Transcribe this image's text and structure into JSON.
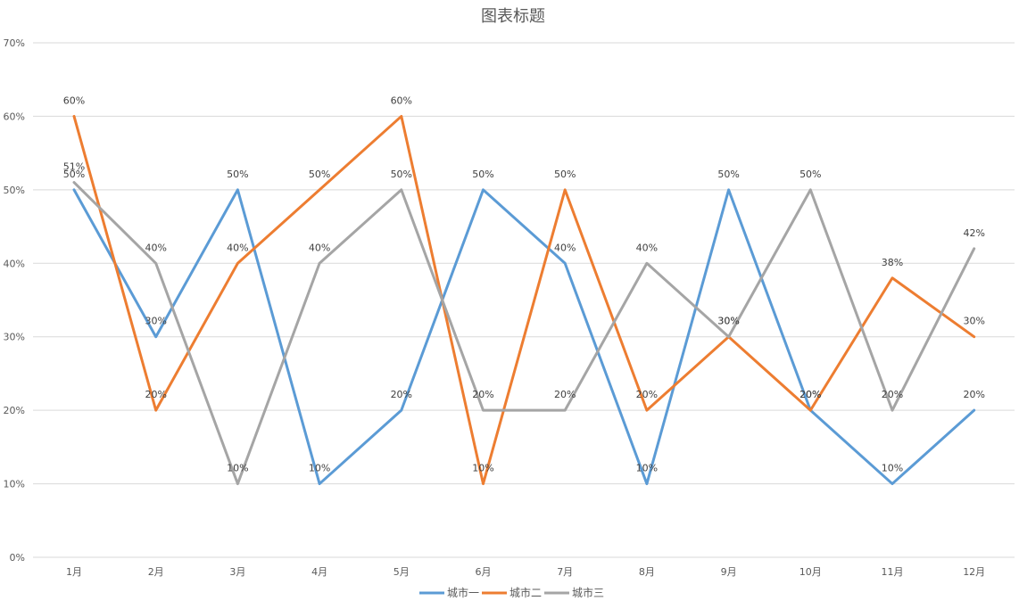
{
  "chart_data": {
    "type": "line",
    "title": "图表标题",
    "xlabel": "",
    "ylabel": "",
    "categories": [
      "1月",
      "2月",
      "3月",
      "4月",
      "5月",
      "6月",
      "7月",
      "8月",
      "9月",
      "10月",
      "11月",
      "12月"
    ],
    "ylim": [
      0,
      70
    ],
    "yticks": [
      0,
      10,
      20,
      30,
      40,
      50,
      60,
      70
    ],
    "ytick_labels": [
      "0%",
      "10%",
      "20%",
      "30%",
      "40%",
      "50%",
      "60%",
      "70%"
    ],
    "value_format": "percent",
    "grid": true,
    "legend_position": "bottom",
    "series": [
      {
        "name": "城市一",
        "color": "#5B9BD5",
        "values": [
          50,
          30,
          50,
          10,
          20,
          50,
          40,
          10,
          50,
          20,
          10,
          20
        ]
      },
      {
        "name": "城市二",
        "color": "#ED7D31",
        "values": [
          60,
          20,
          40,
          50,
          60,
          10,
          50,
          20,
          30,
          20,
          38,
          30
        ]
      },
      {
        "name": "城市三",
        "color": "#A5A5A5",
        "values": [
          51,
          40,
          10,
          40,
          50,
          20,
          20,
          40,
          30,
          50,
          20,
          42
        ]
      }
    ]
  }
}
